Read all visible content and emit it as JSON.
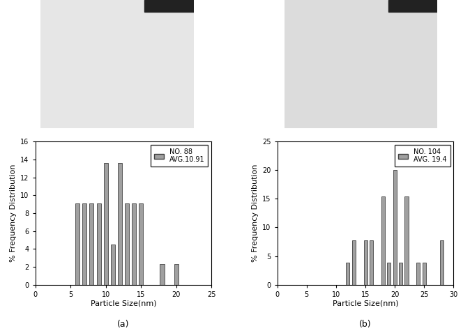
{
  "chart_data": [
    {
      "type": "bar",
      "x": [
        6,
        7,
        8,
        9,
        10,
        11,
        12,
        13,
        14,
        15,
        18,
        20
      ],
      "series": [
        {
          "name": "NO. 88\nAVG.10.91",
          "color": "#a0a0a0",
          "values": [
            9.1,
            9.1,
            9.1,
            9.1,
            13.6,
            4.5,
            13.6,
            9.1,
            9.1,
            9.1,
            2.3,
            2.3
          ]
        }
      ],
      "x_label": "Particle Size(nm)",
      "y_label": "% Frequency Distribution",
      "caption": "(a)",
      "legend": "upper right",
      "grid": false,
      "xlim": [
        0,
        25
      ],
      "xticks": [
        0,
        5,
        10,
        15,
        20,
        25
      ],
      "ylim": [
        0,
        16
      ],
      "yticks": [
        0,
        2,
        4,
        6,
        8,
        10,
        12,
        14,
        16
      ]
    },
    {
      "type": "bar",
      "x": [
        12,
        13,
        15,
        16,
        18,
        19,
        20,
        21,
        22,
        24,
        25,
        28
      ],
      "series": [
        {
          "name": "NO. 104\nAVG. 19.4",
          "color": "#a0a0a0",
          "values": [
            3.8,
            7.7,
            7.7,
            7.7,
            15.4,
            3.8,
            20,
            3.8,
            15.4,
            3.8,
            3.8,
            7.7
          ]
        }
      ],
      "x_label": "Particle Size(nm)",
      "y_label": "% Frequency Distribution",
      "caption": "(b)",
      "legend": "upper right",
      "grid": false,
      "xlim": [
        0,
        30
      ],
      "xticks": [
        0,
        5,
        10,
        15,
        20,
        25,
        30
      ],
      "ylim": [
        0,
        25
      ],
      "yticks": [
        0,
        5,
        10,
        15,
        20,
        25
      ]
    }
  ]
}
